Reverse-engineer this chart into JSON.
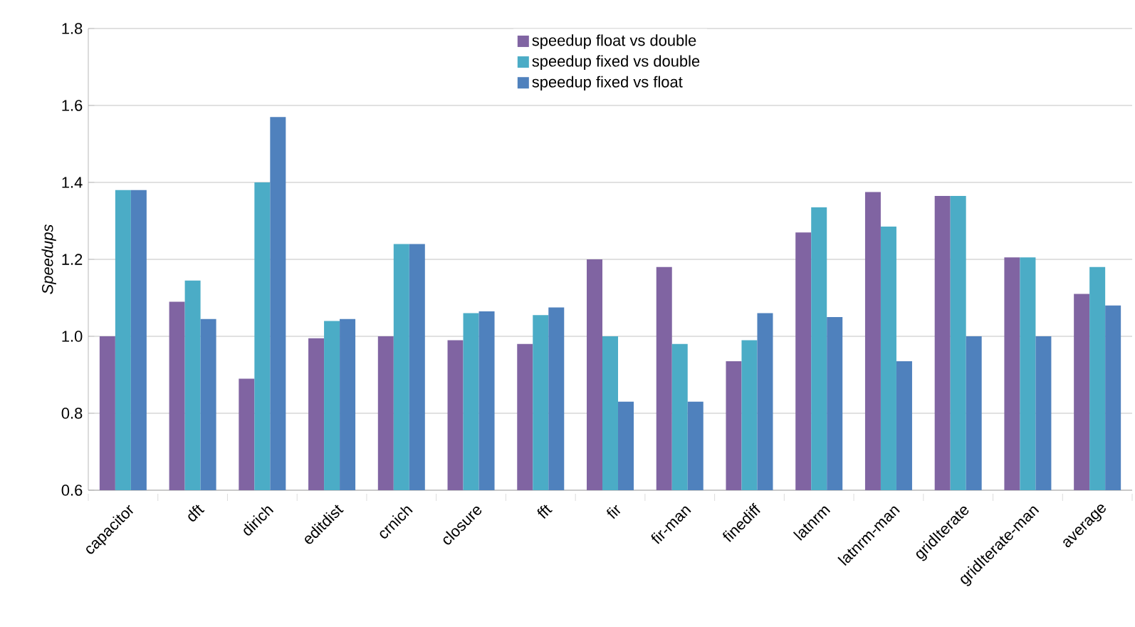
{
  "chart_data": {
    "type": "bar",
    "ylabel": "*Speedups*",
    "categories": [
      "capacitor",
      "dft",
      "dirich",
      "editdist",
      "crnich",
      "closure",
      "fft",
      "fir",
      "fir-man",
      "finediff",
      "latnrm",
      "latnrm-man",
      "gridIterate",
      "gridIterate-man",
      "average"
    ],
    "series": [
      {
        "name": "speedup float vs double",
        "color": "#8064a2",
        "values": [
          1.0,
          1.09,
          0.89,
          0.995,
          1.0,
          0.99,
          0.98,
          1.2,
          1.18,
          0.935,
          1.27,
          1.375,
          1.365,
          1.205,
          1.11
        ]
      },
      {
        "name": "speedup fixed vs double",
        "color": "#4bacc6",
        "values": [
          1.38,
          1.145,
          1.4,
          1.04,
          1.24,
          1.06,
          1.055,
          1.0,
          0.98,
          0.99,
          1.335,
          1.285,
          1.365,
          1.205,
          1.18
        ]
      },
      {
        "name": "speedup fixed vs float",
        "color": "#4f81bd",
        "values": [
          1.38,
          1.045,
          1.57,
          1.045,
          1.24,
          1.065,
          1.075,
          0.83,
          0.83,
          1.06,
          1.05,
          0.935,
          1.0,
          1.0,
          1.08
        ]
      }
    ],
    "ylim": [
      0.6,
      1.8
    ],
    "yticks": [
      0.6,
      0.8,
      {
        "value": 1,
        "label": "1.0"
      },
      1.2,
      1.4,
      1.6,
      1.8
    ],
    "grid": "y",
    "legend": "top"
  }
}
